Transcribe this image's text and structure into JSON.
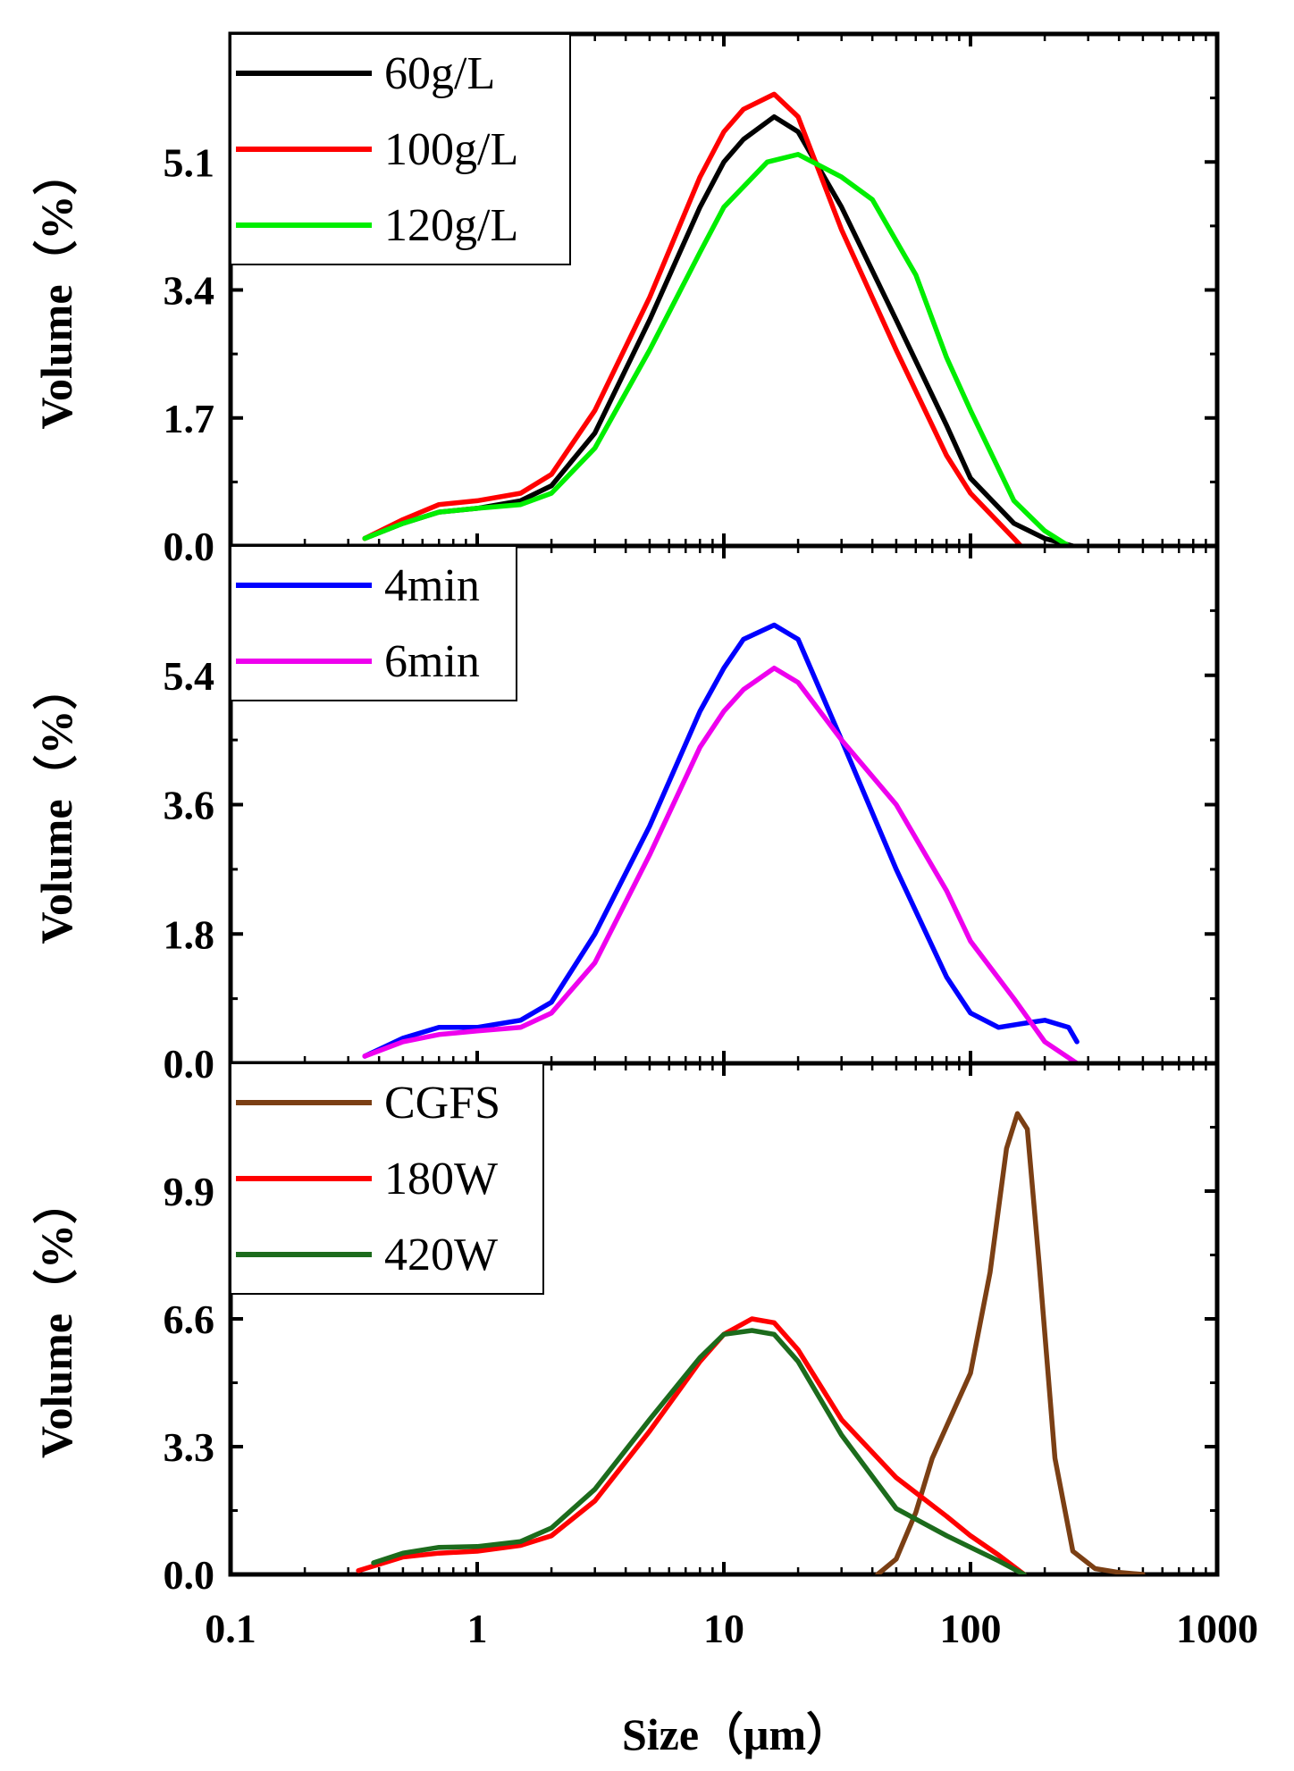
{
  "x_axis": {
    "label": "Size（μm）",
    "scale": "log",
    "range": [
      0.1,
      1000
    ],
    "ticks": [
      0.1,
      1,
      10,
      100,
      1000
    ],
    "tick_labels": [
      "0.1",
      "1",
      "10",
      "100",
      "1000"
    ]
  },
  "chart_data": [
    {
      "type": "line",
      "panel": "top",
      "ylabel": "Volume（%）",
      "xlabel": "Size（μm）",
      "ylim": [
        0,
        6.8
      ],
      "yticks": [
        0.0,
        1.7,
        3.4,
        5.1
      ],
      "ytick_labels": [
        "0.0",
        "1.7",
        "3.4",
        "5.1"
      ],
      "legend_position": "top-left",
      "series": [
        {
          "name": "60g/L",
          "color": "#000000",
          "x": [
            0.35,
            0.5,
            0.7,
            1.0,
            1.5,
            2.0,
            3.0,
            5.0,
            8.0,
            10,
            12,
            16,
            20,
            30,
            50,
            80,
            100,
            150,
            200,
            260
          ],
          "y": [
            0.1,
            0.3,
            0.45,
            0.5,
            0.6,
            0.8,
            1.5,
            3.0,
            4.5,
            5.1,
            5.4,
            5.7,
            5.5,
            4.5,
            3.0,
            1.6,
            0.9,
            0.3,
            0.1,
            0.0
          ]
        },
        {
          "name": "100g/L",
          "color": "#ff0000",
          "x": [
            0.35,
            0.5,
            0.7,
            1.0,
            1.5,
            2.0,
            3.0,
            5.0,
            8.0,
            10,
            12,
            16,
            20,
            30,
            50,
            80,
            100,
            150,
            160
          ],
          "y": [
            0.1,
            0.35,
            0.55,
            0.6,
            0.7,
            0.95,
            1.8,
            3.3,
            4.9,
            5.5,
            5.8,
            6.0,
            5.7,
            4.2,
            2.6,
            1.2,
            0.7,
            0.1,
            0.0
          ]
        },
        {
          "name": "120g/L",
          "color": "#00ee00",
          "x": [
            0.35,
            0.5,
            0.7,
            1.0,
            1.5,
            2.0,
            3.0,
            5.0,
            8.0,
            10,
            15,
            20,
            30,
            40,
            60,
            80,
            100,
            150,
            200,
            250
          ],
          "y": [
            0.1,
            0.3,
            0.45,
            0.5,
            0.55,
            0.7,
            1.3,
            2.6,
            3.9,
            4.5,
            5.1,
            5.2,
            4.9,
            4.6,
            3.6,
            2.5,
            1.8,
            0.6,
            0.2,
            0.0
          ]
        }
      ]
    },
    {
      "type": "line",
      "panel": "middle",
      "ylabel": "Volume（%）",
      "xlabel": "Size（μm）",
      "ylim": [
        0,
        7.2
      ],
      "yticks": [
        0.0,
        1.8,
        3.6,
        5.4
      ],
      "ytick_labels": [
        "0.0",
        "1.8",
        "3.6",
        "5.4"
      ],
      "legend_position": "top-left",
      "series": [
        {
          "name": "4min",
          "color": "#0000ff",
          "x": [
            0.35,
            0.5,
            0.7,
            1.0,
            1.5,
            2.0,
            3.0,
            5.0,
            8.0,
            10,
            12,
            16,
            20,
            30,
            50,
            80,
            100,
            130,
            160,
            200,
            250,
            270
          ],
          "y": [
            0.1,
            0.35,
            0.5,
            0.5,
            0.6,
            0.85,
            1.8,
            3.3,
            4.9,
            5.5,
            5.9,
            6.1,
            5.9,
            4.5,
            2.7,
            1.2,
            0.7,
            0.5,
            0.55,
            0.6,
            0.5,
            0.3
          ]
        },
        {
          "name": "6min",
          "color": "#ee00ee",
          "x": [
            0.35,
            0.5,
            0.7,
            1.0,
            1.5,
            2.0,
            3.0,
            5.0,
            8.0,
            10,
            12,
            16,
            20,
            30,
            50,
            80,
            100,
            150,
            200,
            270
          ],
          "y": [
            0.1,
            0.3,
            0.4,
            0.45,
            0.5,
            0.7,
            1.4,
            2.9,
            4.4,
            4.9,
            5.2,
            5.5,
            5.3,
            4.5,
            3.6,
            2.4,
            1.7,
            0.9,
            0.3,
            0.0
          ]
        }
      ]
    },
    {
      "type": "line",
      "panel": "bottom",
      "ylabel": "Volume（%）",
      "xlabel": "Size（μm）",
      "ylim": [
        0,
        13.2
      ],
      "yticks": [
        0.0,
        3.3,
        6.6,
        9.9
      ],
      "ytick_labels": [
        "0.0",
        "3.3",
        "6.6",
        "9.9"
      ],
      "legend_position": "top-left",
      "series": [
        {
          "name": "CGFS",
          "color": "#7b3f14",
          "x": [
            42,
            50,
            60,
            70,
            85,
            100,
            120,
            140,
            155,
            170,
            190,
            220,
            260,
            320,
            400,
            500
          ],
          "y": [
            0.0,
            0.4,
            1.6,
            3.0,
            4.2,
            5.2,
            7.8,
            11.0,
            11.9,
            11.5,
            8.0,
            3.0,
            0.6,
            0.15,
            0.05,
            0.0
          ]
        },
        {
          "name": "180W",
          "color": "#ff0000",
          "x": [
            0.33,
            0.5,
            0.7,
            1.0,
            1.5,
            2.0,
            3.0,
            5.0,
            8.0,
            10,
            13,
            16,
            20,
            30,
            50,
            80,
            100,
            130,
            165
          ],
          "y": [
            0.1,
            0.45,
            0.55,
            0.6,
            0.75,
            1.0,
            1.9,
            3.7,
            5.5,
            6.2,
            6.6,
            6.5,
            5.8,
            4.0,
            2.5,
            1.5,
            1.0,
            0.5,
            0.0
          ]
        },
        {
          "name": "420W",
          "color": "#1c6b1c",
          "x": [
            0.38,
            0.5,
            0.7,
            1.0,
            1.5,
            2.0,
            3.0,
            5.0,
            8.0,
            10,
            13,
            16,
            20,
            30,
            50,
            80,
            100,
            130,
            165
          ],
          "y": [
            0.3,
            0.55,
            0.7,
            0.72,
            0.85,
            1.2,
            2.2,
            4.0,
            5.6,
            6.2,
            6.3,
            6.2,
            5.5,
            3.6,
            1.7,
            1.0,
            0.7,
            0.35,
            0.0
          ]
        }
      ]
    }
  ]
}
